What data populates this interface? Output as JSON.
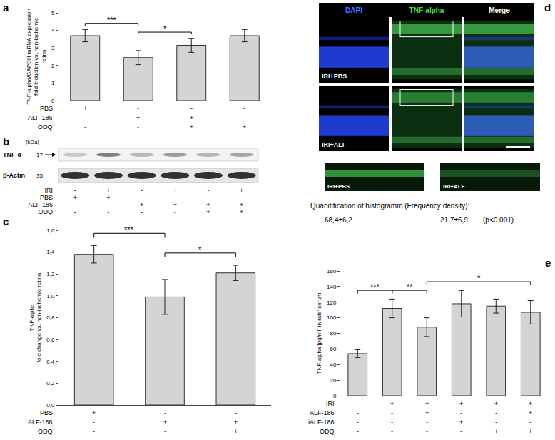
{
  "chart_data": [
    {
      "panel": "a",
      "type": "bar",
      "y_label": [
        "TNF-alpha/GAPDH mRNA expression",
        "fold induction vs. non-ischemic",
        "retina"
      ],
      "categories": [
        null,
        null,
        null,
        null
      ],
      "values": [
        3.7,
        2.45,
        3.15,
        3.7
      ],
      "errors": [
        0.35,
        0.4,
        0.4,
        0.35
      ],
      "color": "#d4d4d4",
      "ylim": [
        0,
        5
      ],
      "yticks": [
        0,
        1,
        2,
        3,
        4,
        5
      ],
      "grid": false,
      "tick_labels": "y",
      "conditions": [
        {
          "label": "PBS",
          "marks": [
            "+",
            "-",
            "-",
            "-"
          ]
        },
        {
          "label": "ALF-186",
          "marks": [
            "-",
            "+",
            "+",
            "-"
          ]
        },
        {
          "label": "ODQ",
          "marks": [
            "-",
            "-",
            "+",
            "+"
          ]
        }
      ],
      "significance": [
        {
          "from": 0,
          "to": 1,
          "label": "***"
        },
        {
          "from": 1,
          "to": 2,
          "label": "*"
        }
      ]
    },
    {
      "panel": "c",
      "type": "bar",
      "y_label": [
        "TNF-alpha",
        "fold change vs. non-ischemic retina"
      ],
      "categories": [
        null,
        null,
        null
      ],
      "values": [
        1.38,
        0.99,
        1.21
      ],
      "errors": [
        0.08,
        0.16,
        0.07
      ],
      "color": "#d4d4d4",
      "ylim": [
        0,
        1.6
      ],
      "yticks": [
        {
          "value": 0,
          "label": "0,0"
        },
        {
          "value": 0.2,
          "label": "0,2"
        },
        {
          "value": 0.4,
          "label": "0,4"
        },
        {
          "value": 0.6,
          "label": "0,6"
        },
        {
          "value": 0.8,
          "label": "0,8"
        },
        {
          "value": 1.0,
          "label": "1,0"
        },
        {
          "value": 1.2,
          "label": "1,2"
        },
        {
          "value": 1.4,
          "label": "1,4"
        },
        {
          "value": 1.6,
          "label": "1,6"
        }
      ],
      "grid": false,
      "tick_labels": "y",
      "conditions": [
        {
          "label": "PBS",
          "marks": [
            "+",
            "-",
            "-"
          ]
        },
        {
          "label": "ALF-186",
          "marks": [
            "-",
            "+",
            "+"
          ]
        },
        {
          "label": "ODQ",
          "marks": [
            "-",
            "-",
            "+"
          ]
        }
      ],
      "significance": [
        {
          "from": 0,
          "to": 1,
          "label": "***"
        },
        {
          "from": 1,
          "to": 2,
          "label": "*"
        }
      ]
    },
    {
      "panel": "e",
      "type": "bar",
      "y_label": [
        "TNF-alpha [pg/ml] in rats' serum"
      ],
      "categories": [
        null,
        null,
        null,
        null,
        null,
        null
      ],
      "values": [
        54,
        112,
        88,
        118,
        115,
        107
      ],
      "errors": [
        5,
        12,
        12,
        17,
        9,
        15
      ],
      "color": "#d4d4d4",
      "ylim": [
        0,
        160
      ],
      "yticks": [
        0,
        20,
        40,
        60,
        80,
        100,
        120,
        140,
        160
      ],
      "grid": false,
      "tick_labels": "y",
      "conditions": [
        {
          "label": "IRI",
          "marks": [
            "-",
            "+",
            "+",
            "+",
            "+",
            "+"
          ]
        },
        {
          "label": "ALF-186",
          "marks": [
            "-",
            "-",
            "+",
            "-",
            "-",
            "+"
          ]
        },
        {
          "label": "iALF-186",
          "marks": [
            "-",
            "-",
            "-",
            "+",
            "-",
            "-"
          ]
        },
        {
          "label": "ODQ",
          "marks": [
            "-",
            "-",
            "-",
            "-",
            "+",
            "+"
          ]
        }
      ],
      "significance": [
        {
          "from": 0,
          "to": 1,
          "label": "***"
        },
        {
          "from": 1,
          "to": 2,
          "label": "**"
        },
        {
          "from": 2,
          "to": 5,
          "label": "*"
        }
      ]
    }
  ],
  "blot": {
    "panel": "b",
    "unit": "[kDa]",
    "bands": [
      {
        "label": "TNF-α",
        "size": 17
      },
      {
        "label": "β-Actin",
        "size": 35
      }
    ],
    "conditions": [
      {
        "label": "IRI",
        "marks": [
          "-",
          "+",
          "-",
          "+",
          "-",
          "+"
        ]
      },
      {
        "label": "PBS",
        "marks": [
          "+",
          "+",
          "-",
          "-",
          "-",
          "-"
        ]
      },
      {
        "label": "ALF-186",
        "marks": [
          "-",
          "-",
          "+",
          "+",
          "+",
          "+"
        ]
      },
      {
        "label": "ODQ",
        "marks": [
          "-",
          "-",
          "-",
          "-",
          "+",
          "+"
        ]
      }
    ]
  },
  "images": {
    "panel": "d",
    "columns": [
      "DAPI",
      "TNF-alpha",
      "Merge"
    ],
    "rows": [
      "IRI+PBS",
      "IRI+ALF"
    ],
    "insets": [
      "IRI+PBS",
      "IRI+ALF"
    ],
    "caption": "Quanitification of histogramm (Frequency density):",
    "results": [
      "68,4±6,2",
      "21,7±6,9",
      "(p<0.001)"
    ]
  }
}
